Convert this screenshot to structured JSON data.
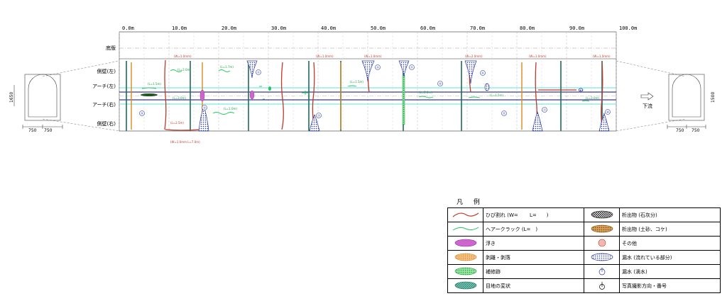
{
  "scale_labels": [
    "0.0m",
    "10.0m",
    "20.0m",
    "30.0m",
    "40.0m",
    "50.0m",
    "60.0m",
    "70.0m",
    "80.0m",
    "90.0m",
    "100.0m"
  ],
  "rows": [
    "底版",
    "側壁(左)",
    "アーチ(左)",
    "アーチ(右)",
    "側壁(右)"
  ],
  "flow_label": "下流",
  "left_section": {
    "height": "1650",
    "widths": [
      "750",
      "750"
    ]
  },
  "right_section": {
    "height": "1500",
    "widths": [
      "750",
      "750"
    ]
  },
  "annotations": {
    "w1": "(W=1.0mm)",
    "w2": "(W=1.0mm)",
    "w3": "(W=1.0mm)",
    "w4": "(W=2.0mm)",
    "w5": "(W=1.0mm)",
    "w6": "(W=1.0mm)",
    "w7": "(W=1.0mm L=7.0m)",
    "l1": "(L=2.0m)",
    "l2": "(L=1.7m)",
    "l3": "(L=1.5m)",
    "l4": "(L=3.0m)",
    "l5": "(L=2.5m)",
    "l6": "(L=1.0m)",
    "l7": "(L=1.5m)",
    "l8": "(L=2.0m)",
    "l9": "(L=3.0m)",
    "l10": "(L=1.5m)"
  },
  "photo_numbers": [
    "①",
    "②",
    "③",
    "④",
    "⑤",
    "⑥",
    "⑦",
    "⑧",
    "⑨",
    "⑩",
    "⑪"
  ],
  "legend": {
    "title": "凡 例",
    "items": [
      {
        "left": "ひび割れ (W=　　 L=　　)",
        "right": "析出物 (石灰分)"
      },
      {
        "left": "ヘアークラック (L=　)",
        "right": "析出物 (土砂、コケ)"
      },
      {
        "left": "浮き",
        "right": "その他"
      },
      {
        "left": "剥離・剥落",
        "right": "漏水 (流れている部分)"
      },
      {
        "left": "補修跡",
        "right": "漏水 (滴水)"
      },
      {
        "left": "目地の変状",
        "right": "写真撮影方向・番号"
      }
    ]
  },
  "colors": {
    "crack": "#c0392b",
    "hair": "#22c55e",
    "joint": "#1f6b5c",
    "leak": "#2b3a9e",
    "orange": "#d98a1e",
    "magenta": "#cc33cc",
    "cyan": "#5ce0e0"
  }
}
